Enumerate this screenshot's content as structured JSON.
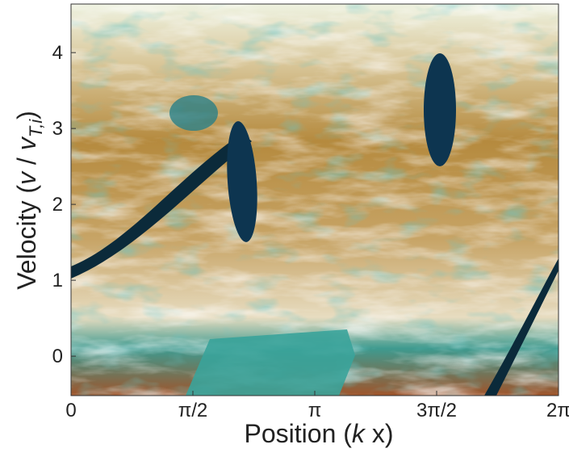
{
  "chart_data": {
    "type": "heatmap",
    "x_label": {
      "prefix": "Position (",
      "var": "k",
      "suffix": " x)"
    },
    "y_label": {
      "prefix": "Velocity (",
      "var": "v",
      "sep": " / ",
      "var2": "v",
      "subscript": "T,i",
      "suffix": ")"
    },
    "xlim": [
      0,
      6.2832
    ],
    "ylim": [
      -0.52,
      4.64
    ],
    "xticks": [
      0,
      {
        "value": 1.5708,
        "label": "π/2"
      },
      {
        "value": 3.1416,
        "label": "π"
      },
      {
        "value": 4.7124,
        "label": "3π/2"
      },
      {
        "value": 6.2832,
        "label": "2π"
      }
    ],
    "yticks": [
      0,
      1,
      2,
      3,
      4
    ]
  }
}
